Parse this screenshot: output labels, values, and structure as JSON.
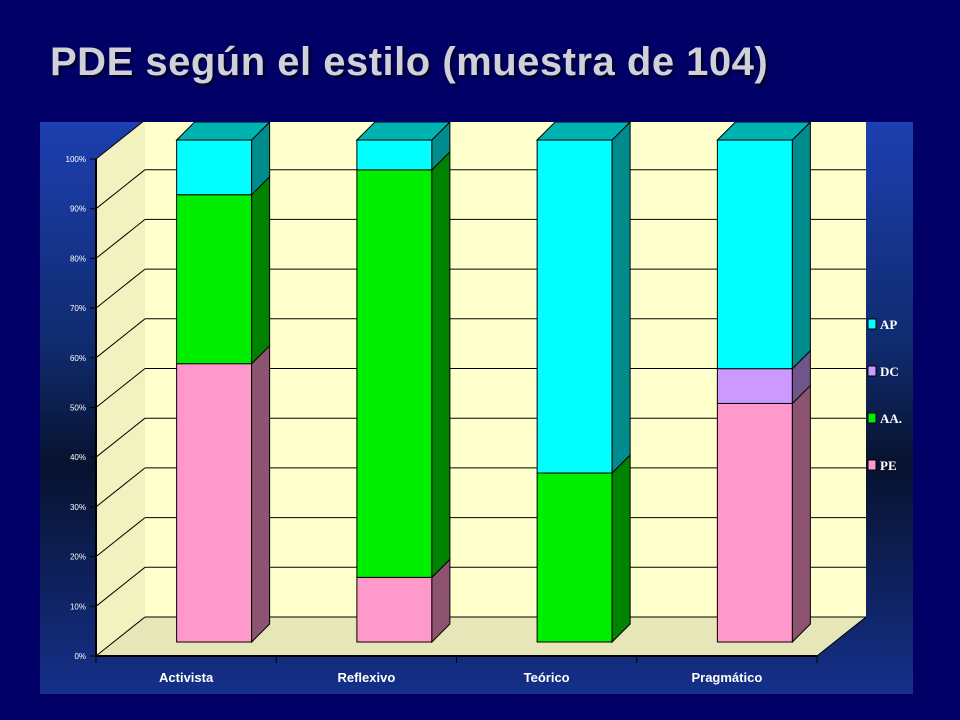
{
  "title": "PDE según el estilo (muestra de 104)",
  "colors": {
    "background": "#000066",
    "plot_back": "#ffffcc",
    "PE": "#ff99cc",
    "AA": "#00ee00",
    "DC": "#cc99ff",
    "AP": "#00ffff"
  },
  "chart_data": {
    "type": "bar",
    "stacked": true,
    "three_d": true,
    "categories": [
      "Activista",
      "Reflexivo",
      "Teórico",
      "Pragmático"
    ],
    "series": [
      {
        "name": "PE",
        "values": [
          56,
          13,
          0,
          48
        ]
      },
      {
        "name": "AA.",
        "values": [
          34,
          82,
          34,
          0
        ]
      },
      {
        "name": "DC",
        "values": [
          0,
          0,
          0,
          7
        ]
      },
      {
        "name": "AP",
        "values": [
          11,
          6,
          67,
          46
        ]
      }
    ],
    "yticks": [
      "0%",
      "10%",
      "20%",
      "30%",
      "40%",
      "50%",
      "60%",
      "70%",
      "80%",
      "90%",
      "100%"
    ],
    "ylim": [
      0,
      100
    ],
    "legend": [
      "AP",
      "DC",
      "AA.",
      "PE"
    ],
    "legend_position": "right",
    "grid": true
  }
}
